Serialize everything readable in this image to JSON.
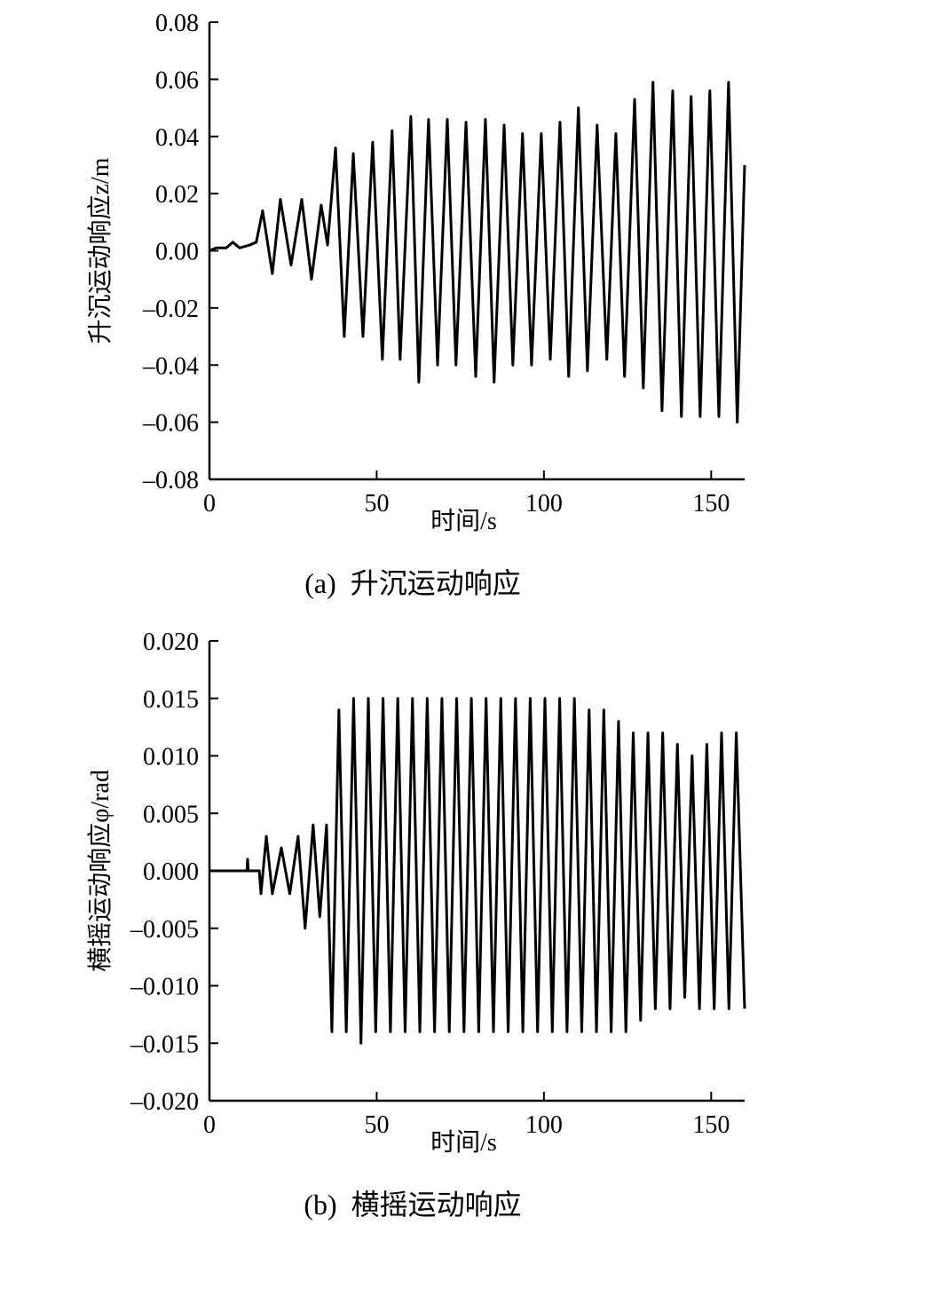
{
  "chart_data": [
    {
      "type": "line",
      "caption": "(a)  升沉运动响应",
      "y_label": "升沉运动响应z/m",
      "x_label": "时间/s",
      "color": "#000000",
      "xlim": [
        0,
        160
      ],
      "xticks": [
        0,
        50,
        100,
        150
      ],
      "ylim": [
        -0.08,
        0.08
      ],
      "yticks": [
        {
          "value": 0.08,
          "label": "0.08"
        },
        {
          "value": 0.06,
          "label": "0.06"
        },
        {
          "value": 0.04,
          "label": "0.04"
        },
        {
          "value": 0.02,
          "label": "0.02"
        },
        {
          "value": 0,
          "label": "0.00"
        },
        {
          "value": -0.02,
          "label": "–0.02"
        },
        {
          "value": -0.04,
          "label": "–0.04"
        },
        {
          "value": -0.06,
          "label": "–0.06"
        },
        {
          "value": -0.08,
          "label": "–0.08"
        }
      ],
      "x": [
        0,
        2,
        5,
        7,
        9,
        12,
        14,
        15.9,
        18.8,
        21.2,
        24.4,
        27.6,
        30.5,
        33.4,
        35.3,
        37.7,
        40.3,
        43.0,
        45.9,
        48.8,
        51.7,
        54.6,
        57.0,
        60.2,
        62.6,
        65.5,
        68.2,
        71.1,
        73.7,
        76.7,
        79.6,
        82.5,
        85.1,
        88.1,
        90.7,
        93.6,
        96.3,
        99.2,
        101.9,
        104.8,
        107.4,
        110.3,
        113.0,
        115.9,
        118.8,
        121.5,
        124.1,
        127.1,
        129.7,
        132.6,
        135.3,
        138.5,
        141.1,
        144.0,
        146.7,
        149.6,
        152.3,
        155.2,
        157.8,
        160
      ],
      "values": [
        0,
        0.001,
        0.001,
        0.003,
        0.001,
        0.002,
        0.003,
        0.014,
        -0.008,
        0.018,
        -0.005,
        0.018,
        -0.01,
        0.016,
        0.002,
        0.036,
        -0.03,
        0.034,
        -0.03,
        0.038,
        -0.038,
        0.042,
        -0.038,
        0.047,
        -0.046,
        0.046,
        -0.04,
        0.046,
        -0.04,
        0.045,
        -0.044,
        0.046,
        -0.046,
        0.044,
        -0.04,
        0.041,
        -0.04,
        0.041,
        -0.038,
        0.045,
        -0.044,
        0.05,
        -0.042,
        0.044,
        -0.038,
        0.041,
        -0.044,
        0.053,
        -0.048,
        0.059,
        -0.056,
        0.056,
        -0.058,
        0.054,
        -0.058,
        0.056,
        -0.058,
        0.059,
        -0.06,
        0.03
      ]
    },
    {
      "type": "line",
      "caption": "(b)  横摇运动响应",
      "y_label": "横摇运动响应φ/rad",
      "x_label": "时间/s",
      "color": "#000000",
      "xlim": [
        0,
        160
      ],
      "xticks": [
        0,
        50,
        100,
        150
      ],
      "ylim": [
        -0.02,
        0.02
      ],
      "yticks": [
        {
          "value": 0.02,
          "label": "0.020"
        },
        {
          "value": 0.015,
          "label": "0.015"
        },
        {
          "value": 0.01,
          "label": "0.010"
        },
        {
          "value": 0.005,
          "label": "0.005"
        },
        {
          "value": 0,
          "label": "0.000"
        },
        {
          "value": -0.005,
          "label": "–0.005"
        },
        {
          "value": -0.01,
          "label": "–0.010"
        },
        {
          "value": -0.015,
          "label": "–0.015"
        },
        {
          "value": -0.02,
          "label": "–0.020"
        }
      ],
      "x": [
        0,
        11.2,
        11.4,
        11.6,
        14.9,
        15.4,
        17.0,
        18.8,
        21.5,
        24.0,
        26.5,
        28.6,
        31.0,
        33.0,
        35.0,
        36.6,
        38.7,
        40.9,
        43.1,
        45.3,
        47.5,
        49.7,
        51.9,
        54.1,
        56.3,
        58.5,
        60.7,
        62.9,
        65.1,
        67.3,
        69.5,
        71.7,
        73.9,
        76.1,
        78.3,
        80.5,
        82.7,
        84.9,
        87.1,
        89.3,
        91.5,
        93.7,
        95.9,
        98.1,
        100.3,
        102.5,
        104.7,
        106.9,
        109.1,
        111.3,
        113.5,
        115.7,
        117.9,
        120.1,
        122.3,
        124.5,
        126.7,
        128.9,
        131.1,
        133.3,
        135.5,
        137.7,
        139.9,
        142.1,
        144.3,
        146.5,
        148.7,
        150.9,
        153.1,
        155.3,
        157.5,
        160
      ],
      "values": [
        0,
        0,
        0.001,
        0,
        0,
        -0.002,
        0.003,
        -0.002,
        0.002,
        -0.002,
        0.003,
        -0.005,
        0.004,
        -0.004,
        0.004,
        -0.014,
        0.014,
        -0.014,
        0.015,
        -0.015,
        0.015,
        -0.014,
        0.015,
        -0.014,
        0.015,
        -0.014,
        0.015,
        -0.014,
        0.015,
        -0.014,
        0.015,
        -0.014,
        0.015,
        -0.014,
        0.015,
        -0.014,
        0.015,
        -0.014,
        0.015,
        -0.014,
        0.015,
        -0.014,
        0.015,
        -0.014,
        0.015,
        -0.014,
        0.015,
        -0.014,
        0.015,
        -0.014,
        0.014,
        -0.014,
        0.014,
        -0.014,
        0.013,
        -0.014,
        0.012,
        -0.013,
        0.012,
        -0.012,
        0.012,
        -0.012,
        0.011,
        -0.011,
        0.01,
        -0.012,
        0.011,
        -0.012,
        0.012,
        -0.012,
        0.012,
        -0.012
      ]
    }
  ]
}
